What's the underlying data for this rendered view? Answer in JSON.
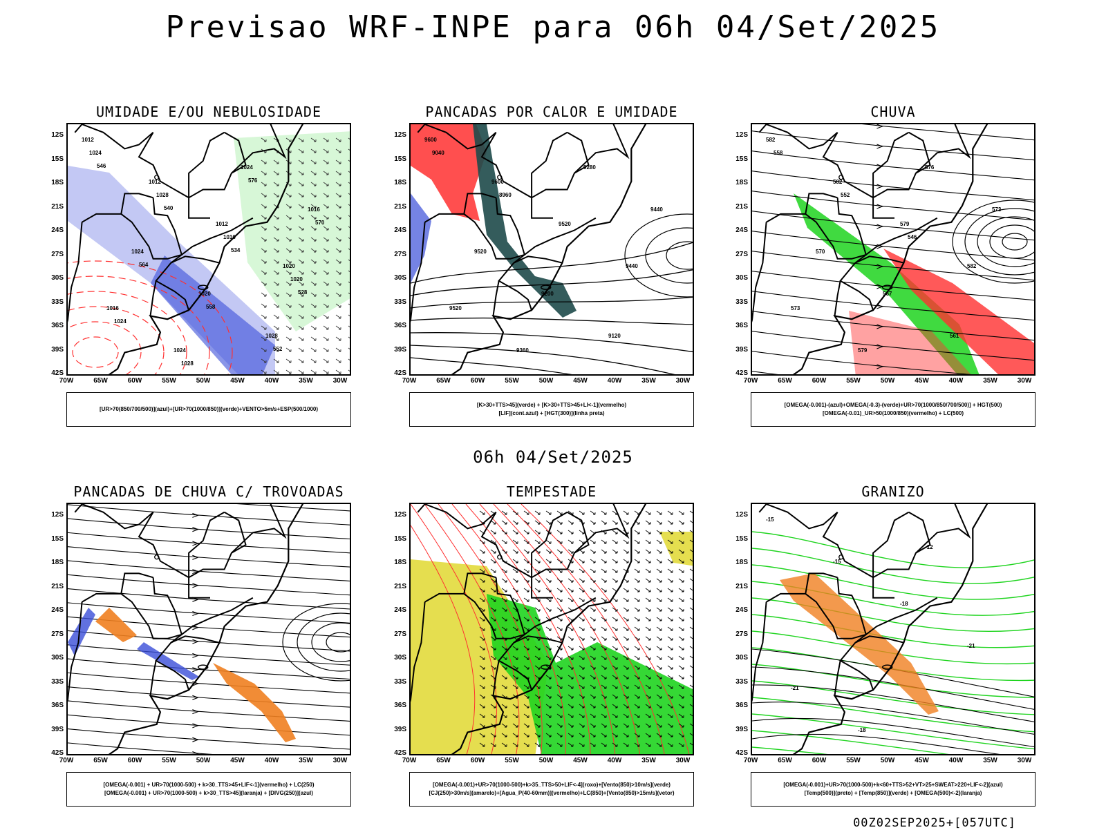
{
  "title": "Previsao WRF-INPE  para 06h 04/Set/2025",
  "middle_title": "06h 04/Set/2025",
  "footer": "00Z02SEP2025+[057UTC]",
  "lat_labels": [
    "12S",
    "15S",
    "18S",
    "21S",
    "24S",
    "27S",
    "30S",
    "33S",
    "36S",
    "39S",
    "42S"
  ],
  "lon_labels": [
    "70W",
    "65W",
    "60W",
    "55W",
    "50W",
    "45W",
    "40W",
    "35W",
    "30W"
  ],
  "colors": {
    "humidity_blue": "#aab0f0",
    "deep_blue": "#3a4ed8",
    "green": "#1fd41f",
    "red": "#ff3030",
    "dark_teal": "#1e4a4a",
    "yellow": "#e0d830",
    "orange": "#f08020"
  },
  "panels": [
    {
      "title": "UMIDADE E/OU NEBULOSIDADE",
      "legend": [
        "[UR>70(850/700/500)](azul)+[UR>70(1000/850)](verde)+VENTO>5m/s+ESP(500/1000)"
      ],
      "contour_labels": [
        "1012",
        "1012",
        "1012",
        "1020",
        "1016",
        "1024",
        "1024",
        "1016",
        "1024",
        "1020",
        "1028",
        "1024",
        "1028",
        "1016",
        "1020",
        "1024",
        "1028",
        "576",
        "570",
        "564",
        "558",
        "552",
        "546",
        "540",
        "534",
        "528"
      ]
    },
    {
      "title": "PANCADAS POR CALOR E UMIDADE",
      "legend": [
        "[K>30+TTS>45](verde) + [K>30+TTS>45+LI<-1](vermelho)",
        "[LIF](cont.azul) + [HGT(300)](linha preta)"
      ],
      "contour_labels": [
        "9600",
        "9600",
        "9520",
        "9440",
        "9520",
        "9360",
        "9280",
        "9440",
        "9520",
        "9200",
        "9120",
        "9040",
        "8960"
      ]
    },
    {
      "title": "CHUVA",
      "legend": [
        "[OMEGA(-0.001)-(azul)+OMEGA(-0.3)-(verde)+UR>70(1000/850/700/500)] + HGT(500)",
        "[OMEGA(-0.01)_UR>50(1000/850)(vermelho) + LC(500)"
      ],
      "contour_labels": [
        "582",
        "582",
        "579",
        "582",
        "573",
        "579",
        "576",
        "573",
        "570",
        "567",
        "561",
        "558",
        "552",
        "546"
      ]
    },
    {
      "title": "PANCADAS DE CHUVA C/ TROVOADAS",
      "legend": [
        "[OMEGA(-0.001) + UR>70(1000-500) + k>30_TTS>45+LIF<-1](vermelho) + LC(250)",
        "[OMEGA(-0.001) + UR>70(1000-500) + k>30_TTS>45](laranja) + [DIVG(250)](azul)"
      ],
      "contour_labels": []
    },
    {
      "title": "TEMPESTADE",
      "legend": [
        "[OMEGA(-0.001)+UR>70(1000-500)+k>35_TTS>50+LIF<-4](roxo)+[Vento(850)>10m/s](verde)",
        "[CJ(250)>30m/s](amarelo)+[Agua_P(40-60mm)](vermelho)+LC(850)+[Vento(850)>15m/s](vetor)"
      ],
      "contour_labels": []
    },
    {
      "title": "GRANIZO",
      "legend": [
        "[OMEGA(-0.001)+UR>70(1000-500)+k<60+TTS>52+VT>25+SWEAT>220+LIF<-2](azul)",
        "[Temp(500)](preto) + [Temp(850)](verde) + [OMEGA(500)<-2](laranja)"
      ],
      "contour_labels": [
        "-15",
        "-15",
        "-18",
        "-21",
        "-21",
        "-18",
        "-12"
      ]
    }
  ]
}
